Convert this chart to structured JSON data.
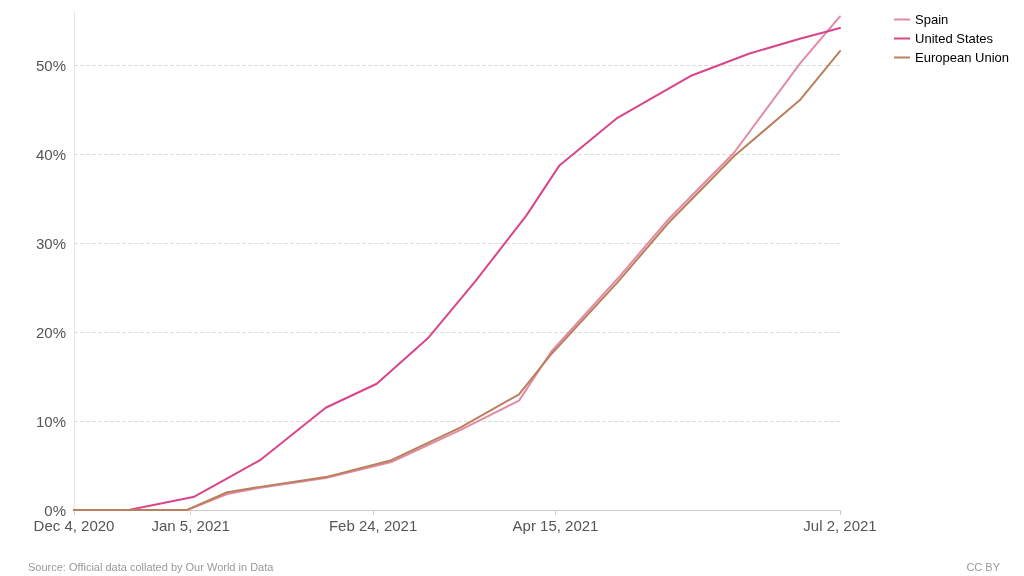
{
  "chart_data": {
    "type": "line",
    "x": [
      "2020-12-04",
      "2020-12-19",
      "2021-01-06",
      "2021-01-24",
      "2021-02-11",
      "2021-02-25",
      "2021-03-11",
      "2021-03-24",
      "2021-04-07",
      "2021-04-16",
      "2021-05-02",
      "2021-05-22",
      "2021-06-07",
      "2021-06-21",
      "2021-07-02"
    ],
    "series": [
      {
        "name": "Spain",
        "color": "#e38aa3",
        "x": [
          "2020-12-04",
          "2021-01-04",
          "2021-01-15",
          "2021-01-24",
          "2021-02-11",
          "2021-03-01",
          "2021-03-20",
          "2021-04-05",
          "2021-04-14",
          "2021-05-02",
          "2021-05-16",
          "2021-06-03",
          "2021-06-21",
          "2021-07-02"
        ],
        "values": [
          0,
          0,
          1.8,
          2.5,
          3.6,
          5.4,
          9,
          12.3,
          17.9,
          26,
          32.7,
          40.2,
          50.2,
          55.5
        ]
      },
      {
        "name": "United States",
        "color": "#d9458a",
        "values": [
          0,
          0,
          1.5,
          5.6,
          11.5,
          14.2,
          19.3,
          25.7,
          33.1,
          38.7,
          44.1,
          48.8,
          51.3,
          53,
          54.2
        ]
      },
      {
        "name": "European Union",
        "color": "#b9805e",
        "x": [
          "2020-12-04",
          "2021-01-04",
          "2021-01-15",
          "2021-01-24",
          "2021-02-11",
          "2021-03-01",
          "2021-03-20",
          "2021-04-05",
          "2021-04-14",
          "2021-05-02",
          "2021-05-16",
          "2021-06-03",
          "2021-06-21",
          "2021-07-02"
        ],
        "values": [
          0,
          0,
          2,
          2.6,
          3.7,
          5.6,
          9.3,
          13,
          17.6,
          25.6,
          32.3,
          39.8,
          46.1,
          51.6
        ]
      }
    ],
    "xlim": [
      "2020-12-04",
      "2021-07-02"
    ],
    "xticks": [
      {
        "value": "2020-12-04",
        "label": "Dec 4, 2020"
      },
      {
        "value": "2021-01-05",
        "label": "Jan 5, 2021"
      },
      {
        "value": "2021-02-24",
        "label": "Feb 24, 2021"
      },
      {
        "value": "2021-04-15",
        "label": "Apr 15, 2021"
      },
      {
        "value": "2021-07-02",
        "label": "Jul 2, 2021"
      }
    ],
    "ylim": [
      0,
      56
    ],
    "yticks": [
      {
        "value": 0,
        "label": "0%"
      },
      {
        "value": 10,
        "label": "10%"
      },
      {
        "value": 20,
        "label": "20%"
      },
      {
        "value": 30,
        "label": "30%"
      },
      {
        "value": 40,
        "label": "40%"
      },
      {
        "value": 50,
        "label": "50%"
      }
    ],
    "grid": "y",
    "legend": "top right",
    "marker": "none",
    "line_style": "solid",
    "annotations": [
      "Source: Official data collated by Our World in Data",
      "CC BY"
    ]
  }
}
